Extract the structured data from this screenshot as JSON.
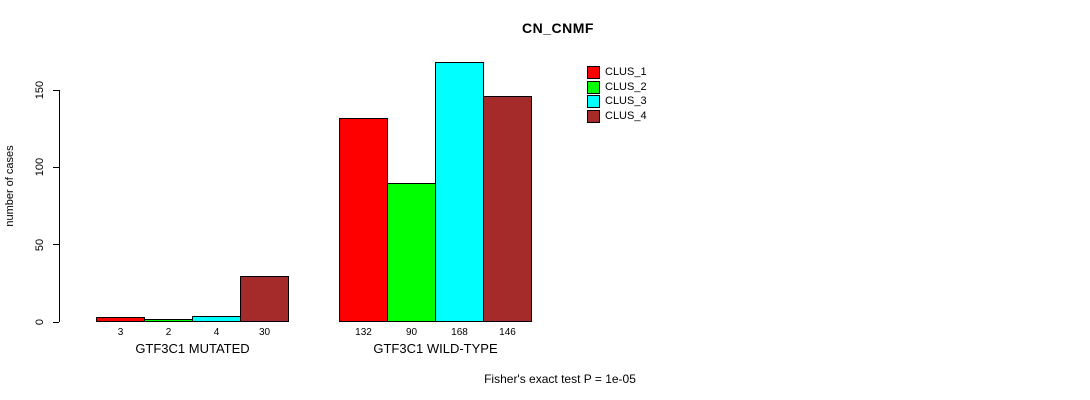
{
  "chart_data": {
    "type": "bar",
    "title": "CN_CNMF",
    "ylabel": "number of cases",
    "yticks": [
      0,
      50,
      100,
      150
    ],
    "ylim": [
      0,
      168
    ],
    "grid": false,
    "legend_position": "right-inside",
    "bar_value_labels_shown": true,
    "categories": [
      "GTF3C1 MUTATED",
      "GTF3C1 WILD-TYPE"
    ],
    "groups": [
      {
        "label": "GTF3C1 MUTATED",
        "values": [
          3,
          2,
          4,
          30
        ]
      },
      {
        "label": "GTF3C1 WILD-TYPE",
        "values": [
          132,
          90,
          168,
          146
        ]
      }
    ],
    "series": [
      {
        "name": "CLUS_1",
        "color": "#ff0000"
      },
      {
        "name": "CLUS_2",
        "color": "#00ff00"
      },
      {
        "name": "CLUS_3",
        "color": "#00ffff"
      },
      {
        "name": "CLUS_4",
        "color": "#a52a2a"
      }
    ],
    "footnote": "Fisher's exact test P = 1e-05"
  }
}
